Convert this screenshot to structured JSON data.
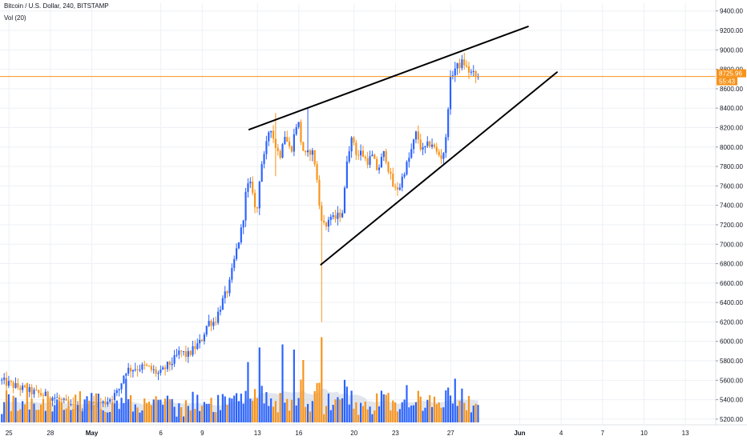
{
  "header": {
    "symbol_line": "Bitcoin / U.S. Dollar, 240, BITSTAMP",
    "volume_line": "Vol (20)"
  },
  "colors": {
    "up": "#2962ff",
    "down": "#f7931a",
    "price_line": "#f7931a",
    "grid": "#eef0f4",
    "volume_ma": "#cfd6e0",
    "trendline": "#000000",
    "axis_text": "#131722"
  },
  "chart_data": {
    "type": "candlestick",
    "title": "Bitcoin / U.S. Dollar, 240, BITSTAMP",
    "y_axis": {
      "position": "right",
      "ticks": [
        5200,
        5400,
        5600,
        5800,
        6000,
        6200,
        6400,
        6600,
        6800,
        7000,
        7200,
        7400,
        7600,
        7800,
        8000,
        8200,
        8400,
        8600,
        8800,
        9000,
        9200,
        9400
      ],
      "tick_labels": [
        "5200.00",
        "5400.00",
        "5600.00",
        "5800.00",
        "6000.00",
        "6200.00",
        "6400.00",
        "6600.00",
        "6800.00",
        "7000.00",
        "7200.00",
        "7400.00",
        "7600.00",
        "7800.00",
        "8000.00",
        "8200.00",
        "8400.00",
        "8600.00",
        "8800.00",
        "9000.00",
        "9200.00",
        "9400.00"
      ],
      "range": [
        5150,
        9480
      ]
    },
    "x_axis": {
      "ticks": [
        {
          "label": "25",
          "day": -6
        },
        {
          "label": "28",
          "day": -3
        },
        {
          "label": "May",
          "day": 0
        },
        {
          "label": "6",
          "day": 5
        },
        {
          "label": "9",
          "day": 8
        },
        {
          "label": "13",
          "day": 12
        },
        {
          "label": "16",
          "day": 15
        },
        {
          "label": "20",
          "day": 19
        },
        {
          "label": "23",
          "day": 22
        },
        {
          "label": "27",
          "day": 26
        },
        {
          "label": "Jun",
          "day": 31
        },
        {
          "label": "4",
          "day": 34
        },
        {
          "label": "7",
          "day": 37
        },
        {
          "label": "10",
          "day": 40
        },
        {
          "label": "13",
          "day": 43
        }
      ],
      "range": [
        -6.65,
        45.2
      ]
    },
    "current_price": {
      "value": 8725.96,
      "label": "8725.96",
      "countdown": "55:43"
    },
    "price_path": [
      [
        -6.6,
        5600
      ],
      [
        -5.5,
        5540
      ],
      [
        -4.5,
        5490
      ],
      [
        -3.5,
        5450
      ],
      [
        -2.5,
        5420
      ],
      [
        -1.5,
        5330
      ],
      [
        -0.5,
        5300
      ],
      [
        0,
        5350
      ],
      [
        1,
        5370
      ],
      [
        2,
        5480
      ],
      [
        2.5,
        5700
      ],
      [
        3,
        5720
      ],
      [
        4,
        5740
      ],
      [
        5,
        5660
      ],
      [
        5.5,
        5740
      ],
      [
        6,
        5800
      ],
      [
        6.5,
        5900
      ],
      [
        7,
        5850
      ],
      [
        7.5,
        5930
      ],
      [
        8,
        6000
      ],
      [
        8.5,
        6200
      ],
      [
        9,
        6200
      ],
      [
        9.5,
        6400
      ],
      [
        10,
        6550
      ],
      [
        10.5,
        6900
      ],
      [
        11,
        7200
      ],
      [
        11.3,
        7600
      ],
      [
        11.7,
        7600
      ],
      [
        12,
        7250
      ],
      [
        12.3,
        7800
      ],
      [
        12.6,
        7900
      ],
      [
        13,
        8250
      ],
      [
        13.3,
        8050
      ],
      [
        13.7,
        7900
      ],
      [
        14,
        8150
      ],
      [
        14.5,
        7950
      ],
      [
        15,
        8300
      ],
      [
        15.3,
        8000
      ],
      [
        15.6,
        7900
      ],
      [
        16,
        7980
      ],
      [
        16.3,
        7800
      ],
      [
        16.6,
        7350
      ],
      [
        17,
        7150
      ],
      [
        17.3,
        7300
      ],
      [
        17.6,
        7250
      ],
      [
        18,
        7300
      ],
      [
        18.3,
        7350
      ],
      [
        18.6,
        7950
      ],
      [
        19,
        8100
      ],
      [
        19.3,
        7900
      ],
      [
        19.6,
        7950
      ],
      [
        20,
        7850
      ],
      [
        20.4,
        7900
      ],
      [
        20.8,
        7750
      ],
      [
        21,
        7850
      ],
      [
        21.3,
        7950
      ],
      [
        21.7,
        7700
      ],
      [
        22,
        7550
      ],
      [
        22.4,
        7600
      ],
      [
        22.7,
        7750
      ],
      [
        23,
        7850
      ],
      [
        23.3,
        8000
      ],
      [
        23.6,
        8150
      ],
      [
        24,
        7950
      ],
      [
        24.3,
        8000
      ],
      [
        24.7,
        8050
      ],
      [
        25,
        7950
      ],
      [
        25.4,
        7900
      ],
      [
        25.7,
        8000
      ],
      [
        26,
        8650
      ],
      [
        26.3,
        8800
      ],
      [
        26.6,
        8830
      ],
      [
        27,
        8880
      ],
      [
        27.3,
        8790
      ],
      [
        27.6,
        8760
      ],
      [
        27.9,
        8725.96
      ]
    ],
    "spikes": [
      {
        "day": 15.5,
        "high": 8400,
        "low": 7900
      },
      {
        "day": 16.6,
        "high": 7400,
        "low": 6200
      },
      {
        "day": 13.2,
        "high": 8350,
        "low": 7700
      }
    ],
    "volume": {
      "max_label": "none",
      "ma_period": 20
    },
    "volume_spikes": [
      {
        "day": 13.7,
        "rel": 0.75,
        "dir": "up"
      },
      {
        "day": 14.5,
        "rel": 0.7,
        "dir": "down"
      },
      {
        "day": 16.6,
        "rel": 0.82,
        "dir": "down"
      },
      {
        "day": 12.1,
        "rel": 0.72,
        "dir": "down"
      },
      {
        "day": 11.3,
        "rel": 0.58,
        "dir": "down"
      },
      {
        "day": 15.3,
        "rel": 0.6,
        "dir": "up"
      },
      {
        "day": 26.2,
        "rel": 0.42,
        "dir": "up"
      },
      {
        "day": 2.4,
        "rel": 0.42,
        "dir": "up"
      },
      {
        "day": -4.8,
        "rel": 0.38,
        "dir": "down"
      }
    ],
    "trendlines": [
      {
        "name": "upper",
        "from": [
          11.4,
          8180
        ],
        "to": [
          31.6,
          9240
        ]
      },
      {
        "name": "lower",
        "from": [
          16.6,
          6790
        ],
        "to": [
          33.7,
          8770
        ]
      }
    ]
  }
}
